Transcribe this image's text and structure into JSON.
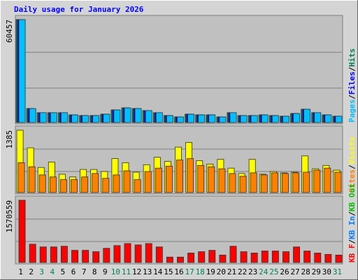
{
  "chart_data": [
    {
      "type": "bar",
      "title": "Daily usage for January 2026",
      "legend_separator": "/",
      "ylim": [
        0,
        60457
      ],
      "yticks": [
        60457
      ],
      "series": [
        {
          "name": "Hits",
          "color": "#00805c",
          "values": [
            60457,
            8200,
            5800,
            5800,
            5800,
            4500,
            4100,
            4100,
            4900,
            7400,
            8600,
            8200,
            7000,
            5800,
            4100,
            3300,
            4900,
            4500,
            4500,
            3300,
            5800,
            4100,
            4100,
            4500,
            4100,
            3700,
            5300,
            7800,
            5800,
            4500,
            3700
          ]
        },
        {
          "name": "Files",
          "color": "#0000ff",
          "values": [
            60457,
            8200,
            5800,
            5800,
            5800,
            4500,
            4100,
            4100,
            4900,
            7400,
            8600,
            8200,
            7000,
            5800,
            4100,
            3300,
            4900,
            4500,
            4500,
            3300,
            5800,
            4100,
            4100,
            4500,
            4100,
            3700,
            5300,
            7800,
            5800,
            4500,
            3700
          ]
        },
        {
          "name": "Pages",
          "color": "#00c0ff",
          "values": [
            60457,
            8200,
            5800,
            5800,
            5800,
            4500,
            4100,
            4100,
            4900,
            7400,
            8600,
            8200,
            7000,
            5800,
            4100,
            3300,
            4900,
            4500,
            4500,
            3300,
            5800,
            4100,
            4100,
            4500,
            4100,
            3700,
            5300,
            7800,
            5800,
            4500,
            3700
          ]
        }
      ]
    },
    {
      "type": "bar",
      "legend_separator": "/",
      "ylim": [
        0,
        1385
      ],
      "yticks": [
        1385
      ],
      "series": [
        {
          "name": "Visits",
          "color": "#ffff00",
          "values": [
            1385,
            994,
            557,
            677,
            406,
            346,
            512,
            512,
            467,
            753,
            662,
            452,
            617,
            783,
            692,
            1009,
            1114,
            708,
            632,
            738,
            542,
            422,
            738,
            406,
            467,
            437,
            452,
            813,
            527,
            602,
            497
          ]
        },
        {
          "name": "Sites",
          "color": "#ff8000",
          "values": [
            662,
            572,
            391,
            346,
            286,
            286,
            346,
            422,
            316,
            391,
            482,
            286,
            467,
            542,
            587,
            723,
            753,
            602,
            572,
            527,
            422,
            361,
            437,
            391,
            437,
            422,
            437,
            452,
            497,
            542,
            452
          ]
        }
      ]
    },
    {
      "type": "bar",
      "legend_separator": "/",
      "ylim": [
        0,
        1570559
      ],
      "yticks": [
        1570559
      ],
      "categories": [
        "1",
        "2",
        "3",
        "4",
        "5",
        "6",
        "7",
        "8",
        "9",
        "10",
        "11",
        "12",
        "13",
        "14",
        "15",
        "16",
        "17",
        "18",
        "19",
        "20",
        "21",
        "22",
        "23",
        "24",
        "25",
        "26",
        "27",
        "28",
        "29",
        "30",
        "31"
      ],
      "category_colors": [
        "#000000",
        "#000000",
        "#00805c",
        "#00805c",
        "#000000",
        "#000000",
        "#000000",
        "#000000",
        "#000000",
        "#00805c",
        "#00805c",
        "#000000",
        "#000000",
        "#000000",
        "#000000",
        "#000000",
        "#00805c",
        "#00805c",
        "#000000",
        "#000000",
        "#000000",
        "#000000",
        "#000000",
        "#00805c",
        "#00805c",
        "#000000",
        "#000000",
        "#000000",
        "#000000",
        "#000000",
        "#00805c"
      ],
      "series": [
        {
          "name": "KB Out",
          "color": "#00c000",
          "values": [
            0,
            0,
            0,
            0,
            0,
            0,
            0,
            0,
            0,
            0,
            0,
            0,
            0,
            0,
            0,
            0,
            0,
            0,
            0,
            0,
            0,
            0,
            0,
            0,
            0,
            0,
            0,
            0,
            0,
            0,
            0
          ]
        },
        {
          "name": "KB In",
          "color": "#0080ff",
          "values": [
            0,
            0,
            0,
            0,
            0,
            0,
            0,
            0,
            0,
            0,
            0,
            0,
            0,
            0,
            0,
            0,
            0,
            0,
            0,
            0,
            0,
            0,
            0,
            0,
            0,
            0,
            0,
            0,
            0,
            0,
            0
          ]
        },
        {
          "name": "KB F",
          "color": "#ff0000",
          "values": [
            1570559,
            461000,
            392600,
            392600,
            409700,
            307300,
            307300,
            273100,
            358500,
            426800,
            478000,
            443900,
            478000,
            392600,
            136600,
            136600,
            239000,
            273100,
            307300,
            187800,
            409700,
            273100,
            239000,
            290200,
            290200,
            273100,
            392600,
            290200,
            239000,
            204900,
            187800
          ]
        }
      ]
    }
  ]
}
